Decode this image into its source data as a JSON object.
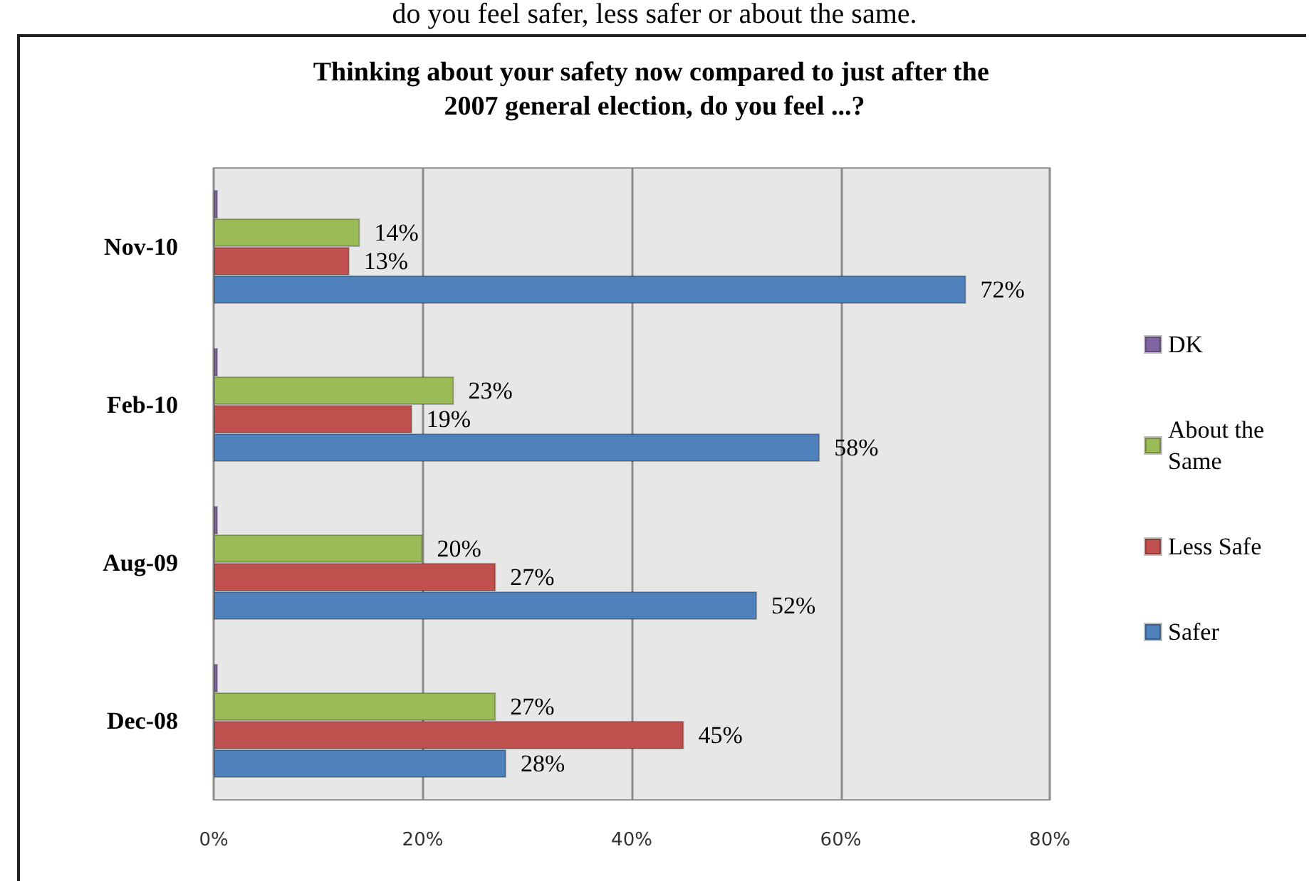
{
  "chart_data": {
    "type": "bar",
    "orientation": "horizontal",
    "title": "Thinking about your safety now compared to just after the 2007 general election, do you feel ...?",
    "annotations": [
      "do you feel safer, less safer or about the same."
    ],
    "categories": [
      "Nov-10",
      "Feb-10",
      "Aug-09",
      "Dec-08"
    ],
    "series": [
      {
        "name": "DK",
        "color": "#8064a2",
        "values": [
          0,
          0,
          0,
          0
        ]
      },
      {
        "name": "About the Same",
        "color": "#9bbb59",
        "values": [
          14,
          23,
          20,
          27
        ],
        "value_labels": [
          "14%",
          "23%",
          "20%",
          "27%"
        ]
      },
      {
        "name": "Less Safe",
        "color": "#c0504d",
        "values": [
          13,
          19,
          27,
          45
        ],
        "value_labels": [
          "13%",
          "19%",
          "27%",
          "45%"
        ]
      },
      {
        "name": "Safer",
        "color": "#4f81bd",
        "values": [
          72,
          58,
          52,
          28
        ],
        "value_labels": [
          "72%",
          "58%",
          "52%",
          "28%"
        ]
      }
    ],
    "xlim": [
      0,
      80
    ],
    "xticks": [
      {
        "value": 0,
        "label": "0%"
      },
      {
        "value": 20,
        "label": "20%"
      },
      {
        "value": 40,
        "label": "40%"
      },
      {
        "value": 60,
        "label": "60%"
      },
      {
        "value": 80,
        "label": "80%"
      }
    ],
    "grid": "x",
    "legend": "right"
  }
}
